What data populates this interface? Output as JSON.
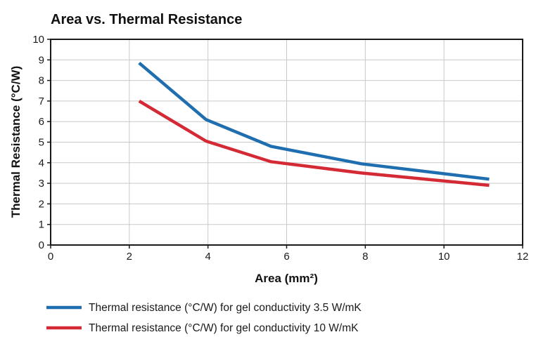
{
  "chart_data": {
    "type": "line",
    "title": "Area vs. Thermal Resistance",
    "xlabel": "Area (mm²)",
    "ylabel": "Thermal Resistance (°C/W)",
    "xlim": [
      0,
      12
    ],
    "ylim": [
      0,
      10
    ],
    "x_ticks": [
      "0",
      "2",
      "4",
      "6",
      "8",
      "10",
      "12"
    ],
    "y_ticks": [
      "0",
      "1",
      "2",
      "3",
      "4",
      "5",
      "6",
      "7",
      "8",
      "9",
      "10"
    ],
    "grid": true,
    "legend_position": "bottom-left",
    "series": [
      {
        "name": "Thermal resistance (°C/W) for gel conductivity 3.5 W/mK",
        "color": "#1f6fb0",
        "x": [
          2.25,
          3.95,
          5.6,
          7.9,
          11.15
        ],
        "y": [
          8.85,
          6.1,
          4.8,
          3.95,
          3.2
        ]
      },
      {
        "name": "Thermal resistance (°C/W) for gel conductivity 10 W/mK",
        "color": "#d42a35",
        "x": [
          2.25,
          3.95,
          5.6,
          7.9,
          11.15
        ],
        "y": [
          7.0,
          5.05,
          4.05,
          3.5,
          2.9
        ]
      }
    ]
  }
}
